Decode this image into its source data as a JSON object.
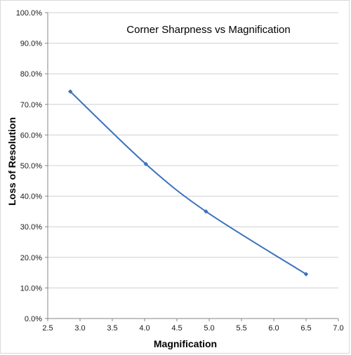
{
  "chart_data": {
    "type": "scatter",
    "title": "Corner Sharpness vs Magnification",
    "xlabel": "Magnification",
    "ylabel": "Loss of Resolution",
    "xlim": [
      2.5,
      7.0
    ],
    "ylim": [
      0,
      100
    ],
    "x_ticks": [
      "2.5",
      "3.0",
      "3.5",
      "4.0",
      "4.5",
      "5.0",
      "5.5",
      "6.0",
      "6.5",
      "7.0"
    ],
    "y_ticks": [
      "0.0%",
      "10.0%",
      "20.0%",
      "30.0%",
      "40.0%",
      "50.0%",
      "60.0%",
      "70.0%",
      "80.0%",
      "90.0%",
      "100.0%"
    ],
    "grid": "horizontal",
    "legend": "none",
    "smooth": true,
    "series": [
      {
        "color": "#3b73bd",
        "x": [
          2.85,
          4.02,
          4.95,
          6.5
        ],
        "y": [
          74.2,
          50.5,
          35.0,
          14.5
        ]
      }
    ]
  }
}
